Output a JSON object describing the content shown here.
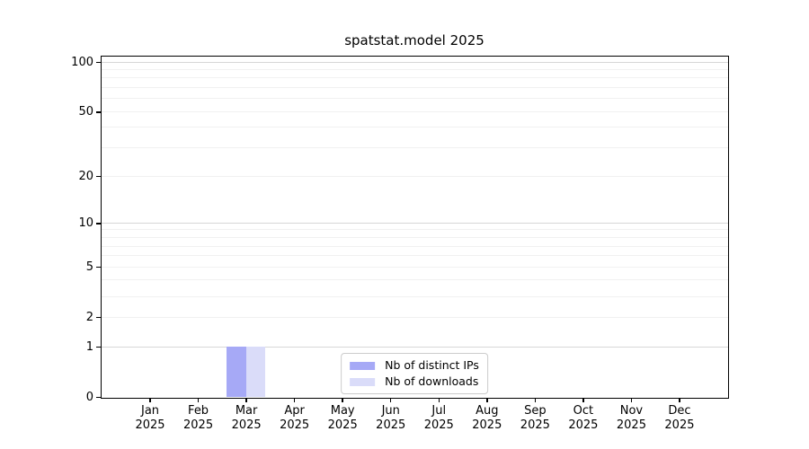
{
  "chart_data": {
    "type": "bar",
    "title": "spatstat.model 2025",
    "categories": [
      "Jan",
      "Feb",
      "Mar",
      "Apr",
      "May",
      "Jun",
      "Jul",
      "Aug",
      "Sep",
      "Oct",
      "Nov",
      "Dec"
    ],
    "category_year": "2025",
    "series": [
      {
        "name": "Nb of distinct IPs",
        "color": "#a6a9f6",
        "values": [
          0,
          0,
          1,
          0,
          0,
          0,
          0,
          0,
          0,
          0,
          0,
          0
        ]
      },
      {
        "name": "Nb of downloads",
        "color": "#dadcf9",
        "values": [
          0,
          0,
          1,
          0,
          0,
          0,
          0,
          0,
          0,
          0,
          0,
          0
        ]
      }
    ],
    "xlabel": "",
    "ylabel": "",
    "y_axis": {
      "scale": "log1p",
      "ticks": [
        0,
        1,
        2,
        5,
        10,
        20,
        50,
        100
      ],
      "max": 108,
      "grid_major": [
        1,
        10,
        100
      ],
      "grid_minor": [
        2,
        3,
        4,
        5,
        6,
        7,
        8,
        9,
        20,
        30,
        40,
        50,
        60,
        70,
        80,
        90
      ]
    },
    "legend": {
      "position": "lower center",
      "entries": [
        "Nb of distinct IPs",
        "Nb of downloads"
      ]
    },
    "colors": {
      "grid_major": "#d7d7d7",
      "grid_minor": "#f1f1f1",
      "spine": "#000000",
      "text": "#000000",
      "legend_border": "#cccccc"
    }
  }
}
